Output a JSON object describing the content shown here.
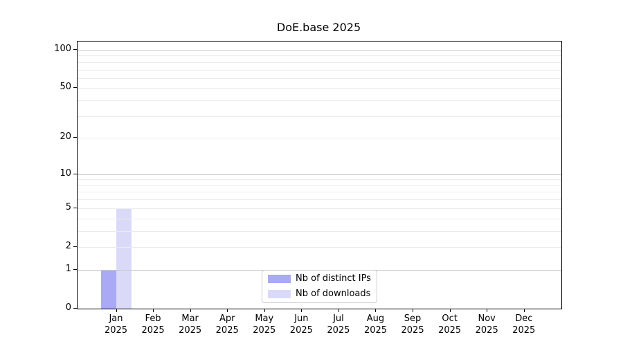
{
  "chart_data": {
    "type": "bar",
    "title": "DoE.base 2025",
    "xlabel": "",
    "ylabel": "",
    "categories": [
      "Jan 2025",
      "Feb 2025",
      "Mar 2025",
      "Apr 2025",
      "May 2025",
      "Jun 2025",
      "Jul 2025",
      "Aug 2025",
      "Sep 2025",
      "Oct 2025",
      "Nov 2025",
      "Dec 2025"
    ],
    "months": [
      "Jan",
      "Feb",
      "Mar",
      "Apr",
      "May",
      "Jun",
      "Jul",
      "Aug",
      "Sep",
      "Oct",
      "Nov",
      "Dec"
    ],
    "year": "2025",
    "series": [
      {
        "name": "Nb of distinct IPs",
        "color": "#a9a9f5",
        "values": [
          1,
          0,
          0,
          0,
          0,
          0,
          0,
          0,
          0,
          0,
          0,
          0
        ]
      },
      {
        "name": "Nb of downloads",
        "color": "#dadaf8",
        "values": [
          5,
          0,
          0,
          0,
          0,
          0,
          0,
          0,
          0,
          0,
          0,
          0
        ]
      }
    ],
    "yscale": "log1p",
    "ylim": [
      0,
      116
    ],
    "ytick_values": [
      0,
      1,
      2,
      5,
      10,
      20,
      50,
      100
    ],
    "ytick_labels": [
      "0",
      "1",
      "2",
      "5",
      "10",
      "20",
      "50",
      "100"
    ],
    "grid_major_values": [
      1,
      10,
      100
    ],
    "grid_minor_values": [
      2,
      3,
      4,
      5,
      6,
      7,
      8,
      9,
      20,
      30,
      40,
      50,
      60,
      70,
      80,
      90
    ],
    "grid": "horizontal",
    "legend_position": "bottom-center",
    "colors": {
      "grid_major": "#c8c8c8",
      "grid_minor": "#ebebeb",
      "axis": "#000000",
      "background": "#ffffff"
    }
  }
}
